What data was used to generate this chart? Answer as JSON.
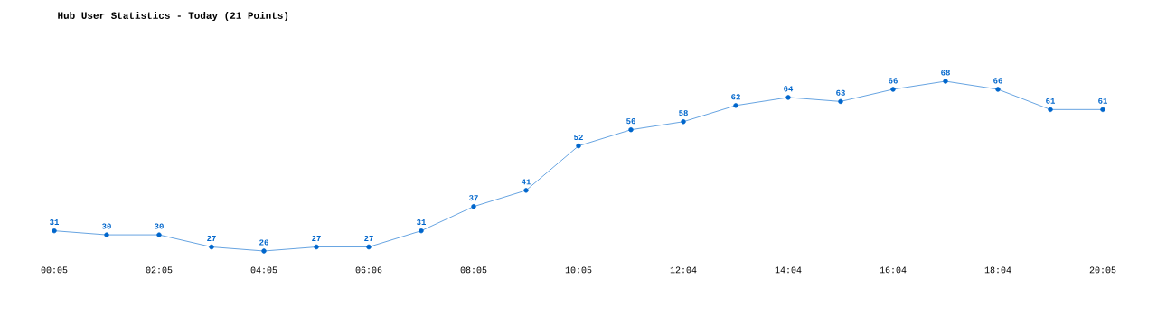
{
  "chart_data": {
    "type": "line",
    "title": "Hub User Statistics - Today (21 Points)",
    "categories": [
      "00:05",
      null,
      "02:05",
      null,
      "04:05",
      null,
      "06:06",
      null,
      "08:05",
      null,
      "10:05",
      null,
      "12:04",
      null,
      "14:04",
      null,
      "16:04",
      null,
      "18:04",
      null,
      "20:05"
    ],
    "values": [
      31,
      30,
      30,
      27,
      26,
      27,
      27,
      31,
      37,
      41,
      52,
      56,
      58,
      62,
      64,
      63,
      66,
      68,
      66,
      61,
      61
    ],
    "color": "#0066cc",
    "marker": "circle",
    "data_labels": true
  }
}
